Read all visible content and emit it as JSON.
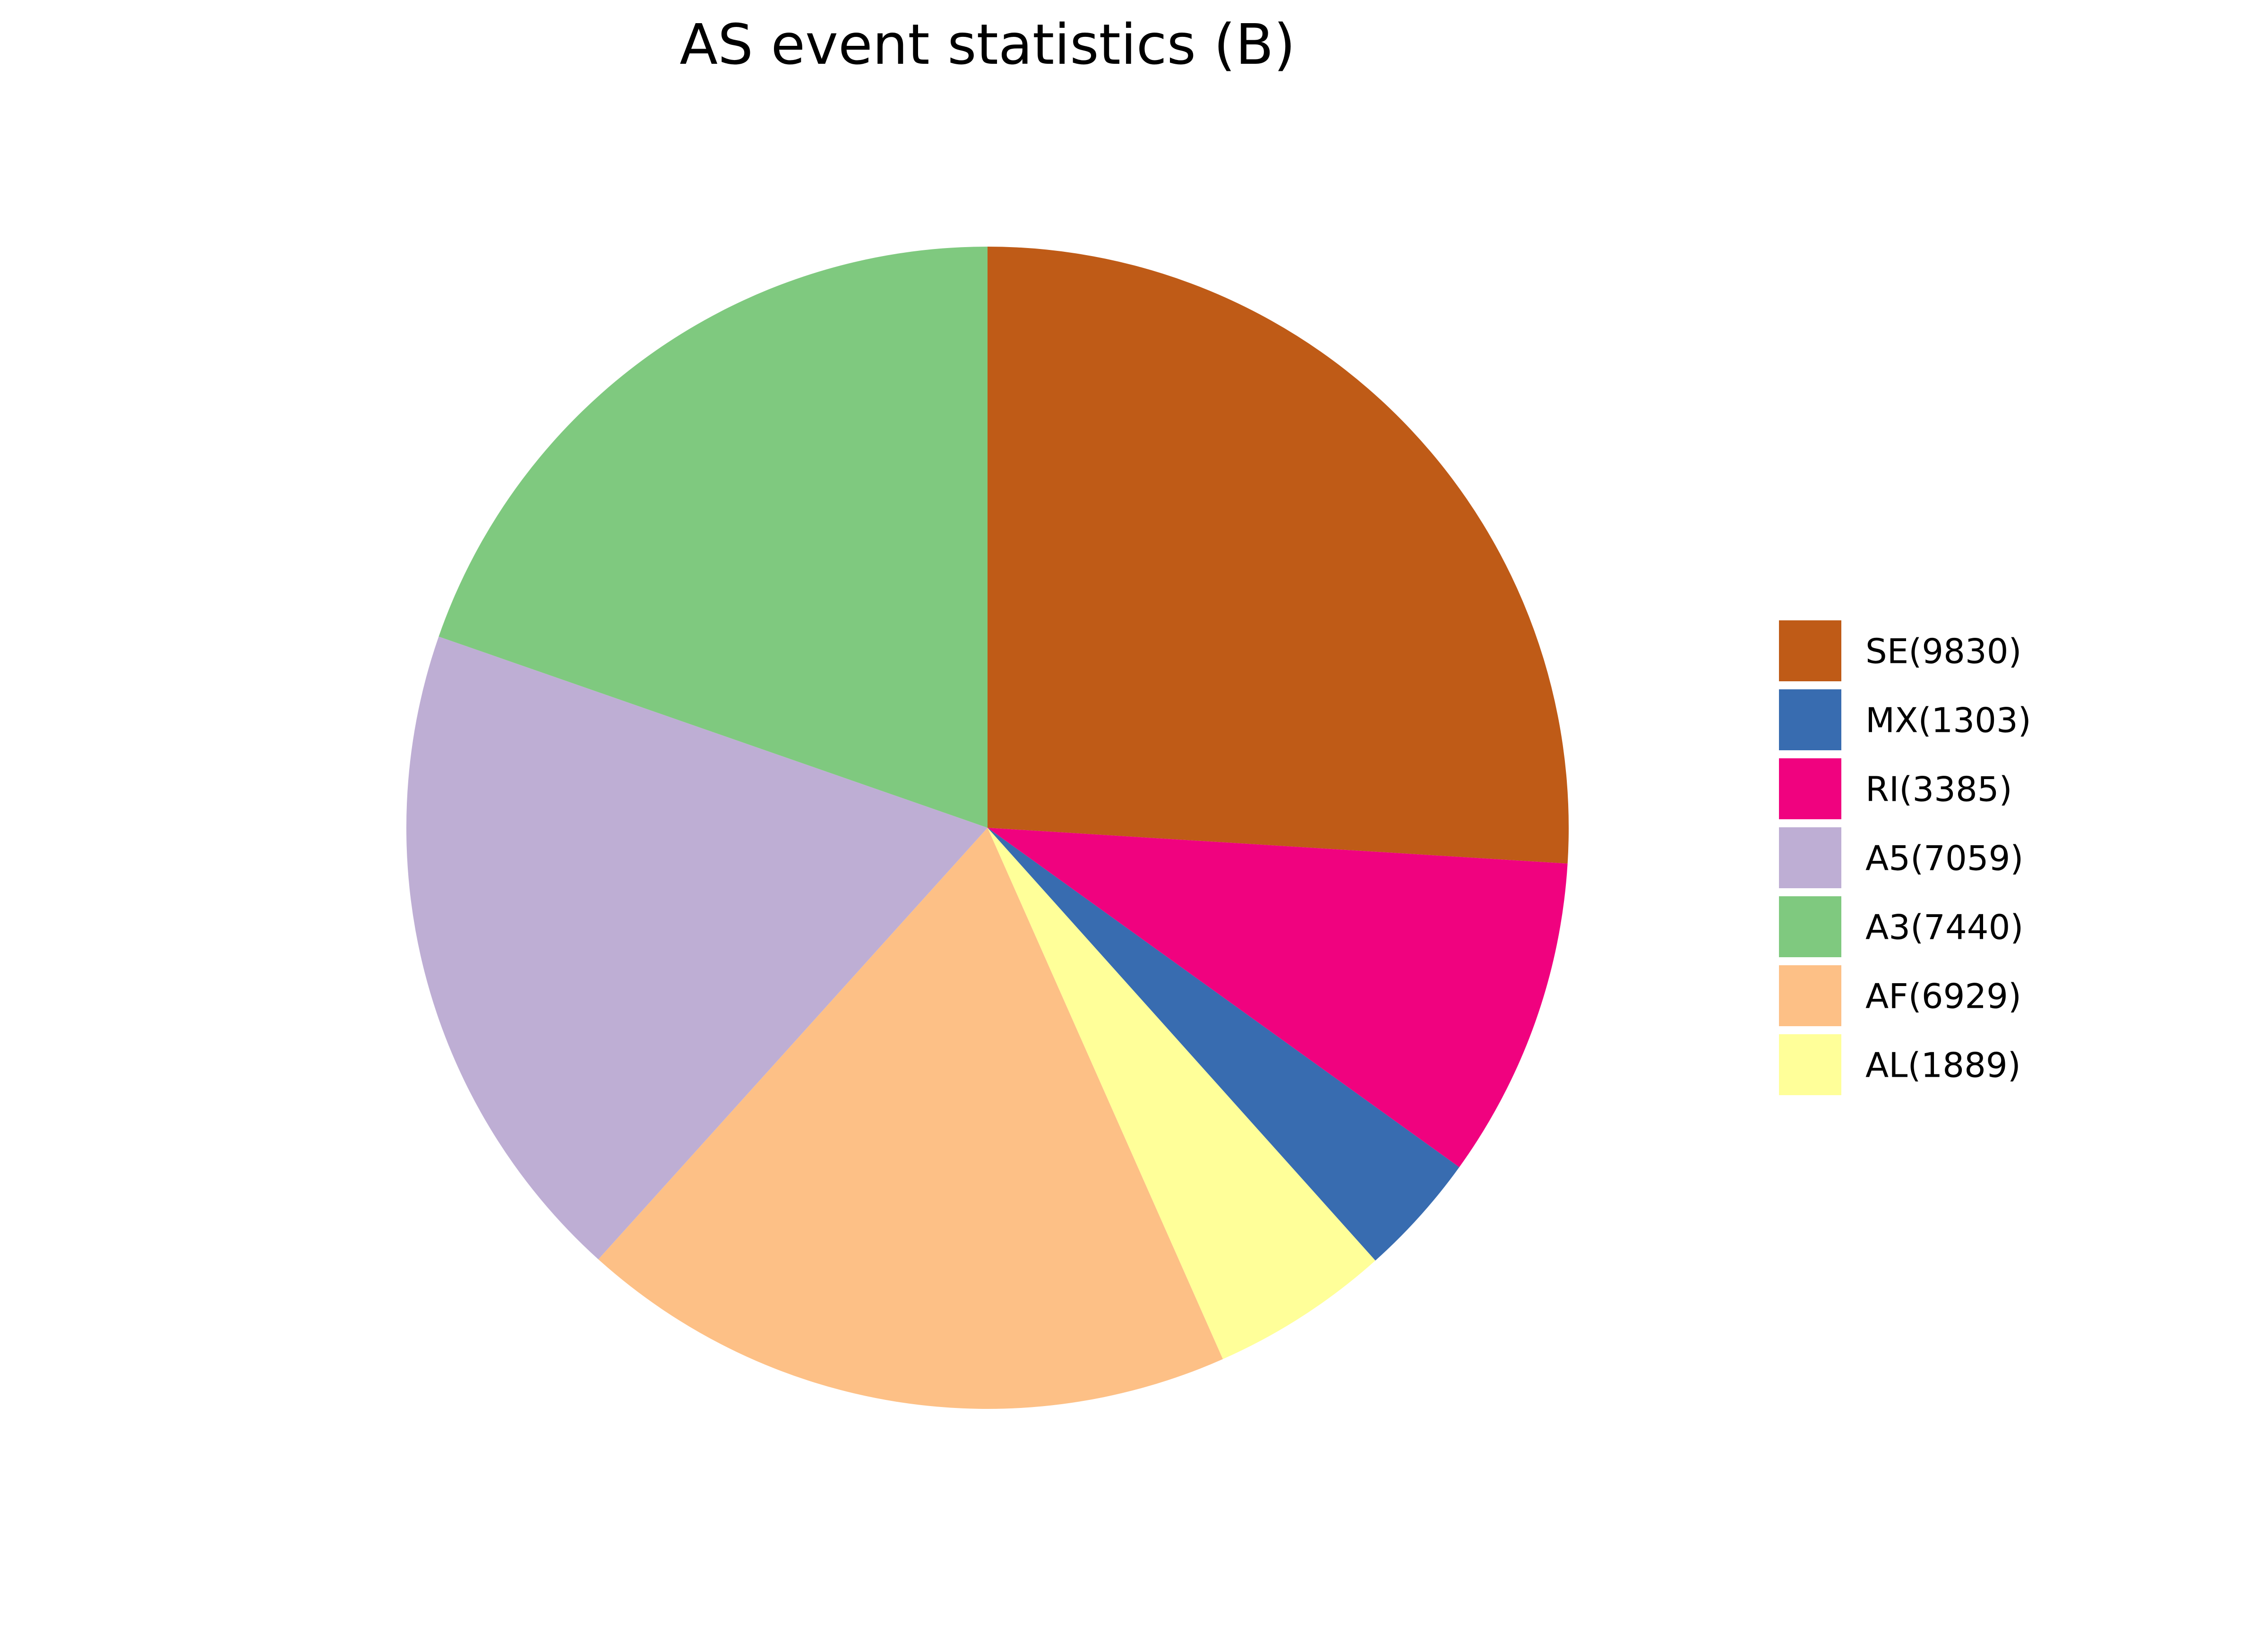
{
  "chart_data": {
    "type": "pie",
    "title": "AS event statistics (B)",
    "start_angle": "top",
    "direction": "clockwise",
    "legend_placement": "right",
    "slices": [
      {
        "label": "SE(9830)",
        "value": 9830,
        "color": "#bf5b17"
      },
      {
        "label": "MX(1303)",
        "value": 1303,
        "color": "#386cb0"
      },
      {
        "label": "RI(3385)",
        "value": 3385,
        "color": "#f0027f"
      },
      {
        "label": "A5(7059)",
        "value": 7059,
        "color": "#beaed4"
      },
      {
        "label": "A3(7440)",
        "value": 7440,
        "color": "#7fc97f"
      },
      {
        "label": "AF(6929)",
        "value": 6929,
        "color": "#fdc086"
      },
      {
        "label": "AL(1889)",
        "value": 1889,
        "color": "#ffff99"
      }
    ],
    "wedge_order": [
      "SE(9830)",
      "RI(3385)",
      "MX(1303)",
      "AL(1889)",
      "AF(6929)",
      "A5(7059)",
      "A3(7440)"
    ]
  }
}
